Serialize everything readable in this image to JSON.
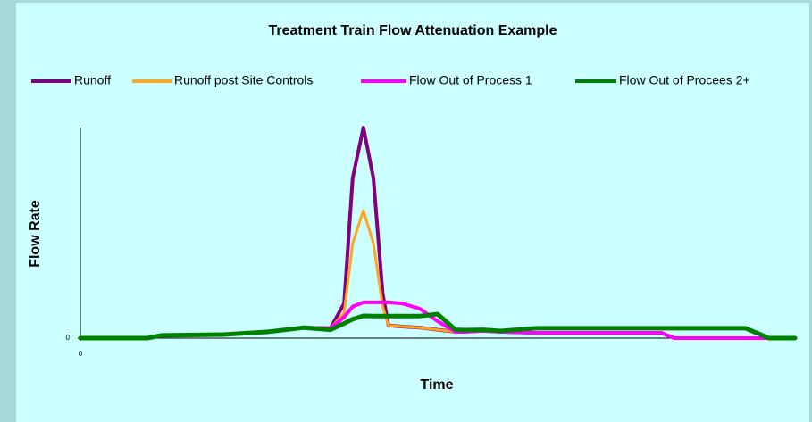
{
  "chart_data": {
    "type": "line",
    "title": "Treatment Train Flow Attenuation Example",
    "x_label": "Time",
    "y_label": "Flow Rate",
    "x": [
      0,
      9.4,
      11.3,
      20,
      26.3,
      31.3,
      35,
      36.9,
      38.1,
      39.6,
      41,
      42.3,
      43.1,
      45,
      47.5,
      50,
      52.5,
      53.8,
      56.3,
      58.8,
      63.8,
      70,
      76.3,
      81.3,
      83.1,
      88.8,
      93.1,
      95,
      96.3,
      97.5,
      100
    ],
    "series": [
      {
        "name": "Runoff",
        "color": "#800080",
        "values": [
          0,
          0,
          1.3,
          1.7,
          3,
          5,
          4.7,
          16.5,
          76,
          100,
          76,
          21,
          6,
          5.5,
          5,
          4,
          3,
          3,
          3.5,
          3,
          2.5,
          2.5,
          2.5,
          2.5,
          0,
          0,
          0,
          0,
          0,
          0,
          0
        ]
      },
      {
        "name": "Runoff post Site Controls",
        "color": "#ffa520",
        "values": [
          0,
          0,
          1.3,
          1.7,
          3,
          5,
          4.7,
          12,
          45,
          60.6,
          45,
          15,
          6,
          5.5,
          5,
          4,
          3,
          3,
          3.5,
          3,
          2.5,
          2.5,
          2.5,
          2.5,
          0,
          0,
          0,
          0,
          0,
          0,
          0
        ]
      },
      {
        "name": "Flow  Out of Process 1",
        "color": "#ff00ff",
        "values": [
          0,
          0,
          1.3,
          1.7,
          3,
          5,
          4.7,
          10,
          15,
          17,
          17,
          17,
          17,
          16.5,
          14,
          8,
          3,
          3,
          3.5,
          3,
          2.5,
          2.5,
          2.5,
          2.5,
          0,
          0,
          0,
          0,
          0,
          0,
          0
        ]
      },
      {
        "name": "Flow  Out of Procees 2+",
        "color": "#008000",
        "values": [
          0,
          0,
          1.3,
          1.7,
          3,
          5,
          4,
          7,
          9,
          10.6,
          10.5,
          10.5,
          10.5,
          10.5,
          10.5,
          11.4,
          4,
          3.8,
          4,
          3.4,
          4.7,
          4.7,
          4.7,
          4.7,
          4.7,
          4.7,
          4.7,
          2,
          0,
          0,
          0
        ]
      }
    ],
    "xlim": [
      0,
      100
    ],
    "ylim": [
      0,
      100
    ],
    "xticks": [
      0
    ],
    "yticks": [
      0
    ]
  }
}
